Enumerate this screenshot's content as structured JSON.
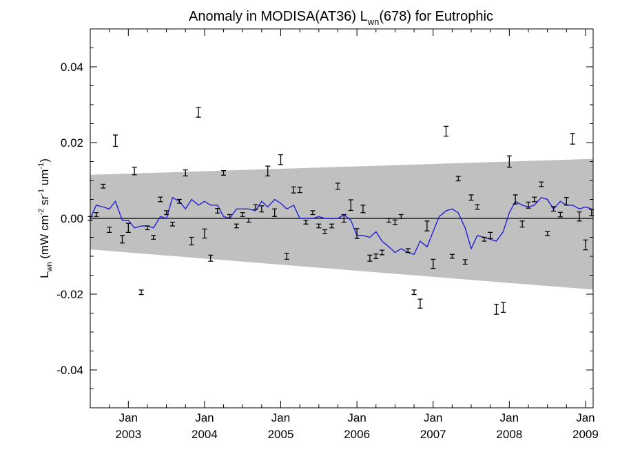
{
  "chart_data": {
    "type": "line",
    "title": {
      "prefix": "Anomaly in MODISA(AT36) L",
      "sub": "wn",
      "suffix": "(678) for Eutrophic"
    },
    "ylabel": {
      "p1": "L",
      "s1": "wn",
      "p2": " (mW cm",
      "s2": "-2",
      "p3": " sr",
      "s3": "-1",
      "p4": " um",
      "s4": "-1",
      "p5": ")"
    },
    "ylim": [
      -0.05,
      0.05
    ],
    "yticks": [
      -0.04,
      -0.02,
      0.0,
      0.02,
      0.04
    ],
    "ytick_labels": [
      "-0.04",
      "-0.02",
      "0.00",
      "0.02",
      "0.04"
    ],
    "xlim": [
      2002.5,
      2009.1
    ],
    "xticks": [
      {
        "x": 2003.0,
        "month": "Jan",
        "year": "2003"
      },
      {
        "x": 2004.0,
        "month": "Jan",
        "year": "2004"
      },
      {
        "x": 2005.0,
        "month": "Jan",
        "year": "2005"
      },
      {
        "x": 2006.0,
        "month": "Jan",
        "year": "2006"
      },
      {
        "x": 2007.0,
        "month": "Jan",
        "year": "2007"
      },
      {
        "x": 2008.0,
        "month": "Jan",
        "year": "2008"
      },
      {
        "x": 2009.0,
        "month": "Jan",
        "year": "2009"
      }
    ],
    "band": {
      "x": [
        2002.5,
        2009.1
      ],
      "upper": [
        0.0115,
        0.0157
      ],
      "lower": [
        -0.0082,
        -0.0188
      ],
      "color": "#c0c0c0"
    },
    "zero_line": 0.0,
    "series": [
      {
        "type": "errorbar",
        "color": "#000000",
        "points": [
          {
            "x": 2002.5,
            "y": 0.0,
            "err": 0.0005
          },
          {
            "x": 2002.58,
            "y": 0.001,
            "err": 0.0005
          },
          {
            "x": 2002.67,
            "y": 0.0085,
            "err": 0.0005
          },
          {
            "x": 2002.75,
            "y": -0.003,
            "err": 0.0007
          },
          {
            "x": 2002.83,
            "y": 0.0205,
            "err": 0.0015
          },
          {
            "x": 2002.92,
            "y": -0.0055,
            "err": 0.001
          },
          {
            "x": 2003.0,
            "y": -0.0025,
            "err": 0.0012
          },
          {
            "x": 2003.08,
            "y": 0.0125,
            "err": 0.001
          },
          {
            "x": 2003.17,
            "y": -0.0195,
            "err": 0.0006
          },
          {
            "x": 2003.25,
            "y": -0.0025,
            "err": 0.0005
          },
          {
            "x": 2003.33,
            "y": -0.005,
            "err": 0.0005
          },
          {
            "x": 2003.42,
            "y": 0.005,
            "err": 0.0006
          },
          {
            "x": 2003.5,
            "y": 0.0015,
            "err": 0.0005
          },
          {
            "x": 2003.58,
            "y": -0.0015,
            "err": 0.0005
          },
          {
            "x": 2003.67,
            "y": 0.0045,
            "err": 0.0005
          },
          {
            "x": 2003.75,
            "y": 0.012,
            "err": 0.0008
          },
          {
            "x": 2003.83,
            "y": -0.006,
            "err": 0.001
          },
          {
            "x": 2003.92,
            "y": 0.028,
            "err": 0.0013
          },
          {
            "x": 2004.0,
            "y": -0.004,
            "err": 0.0012
          },
          {
            "x": 2004.08,
            "y": -0.0105,
            "err": 0.0008
          },
          {
            "x": 2004.17,
            "y": 0.002,
            "err": 0.0006
          },
          {
            "x": 2004.25,
            "y": 0.012,
            "err": 0.0006
          },
          {
            "x": 2004.33,
            "y": 0.0005,
            "err": 0.0005
          },
          {
            "x": 2004.42,
            "y": -0.002,
            "err": 0.0005
          },
          {
            "x": 2004.5,
            "y": 0.001,
            "err": 0.0005
          },
          {
            "x": 2004.58,
            "y": -0.0005,
            "err": 0.0005
          },
          {
            "x": 2004.67,
            "y": 0.003,
            "err": 0.0006
          },
          {
            "x": 2004.75,
            "y": 0.0025,
            "err": 0.0008
          },
          {
            "x": 2004.83,
            "y": 0.0125,
            "err": 0.0013
          },
          {
            "x": 2004.92,
            "y": 0.0015,
            "err": 0.001
          },
          {
            "x": 2005.0,
            "y": 0.0155,
            "err": 0.0013
          },
          {
            "x": 2005.08,
            "y": -0.01,
            "err": 0.0008
          },
          {
            "x": 2005.17,
            "y": 0.0075,
            "err": 0.0008
          },
          {
            "x": 2005.25,
            "y": 0.0075,
            "err": 0.0007
          },
          {
            "x": 2005.33,
            "y": -0.001,
            "err": 0.0005
          },
          {
            "x": 2005.42,
            "y": 0.0015,
            "err": 0.0005
          },
          {
            "x": 2005.5,
            "y": -0.002,
            "err": 0.0005
          },
          {
            "x": 2005.58,
            "y": -0.0035,
            "err": 0.0005
          },
          {
            "x": 2005.67,
            "y": -0.002,
            "err": 0.0005
          },
          {
            "x": 2005.75,
            "y": 0.0085,
            "err": 0.0008
          },
          {
            "x": 2005.83,
            "y": 0.0,
            "err": 0.001
          },
          {
            "x": 2005.92,
            "y": 0.0035,
            "err": 0.0014
          },
          {
            "x": 2006.0,
            "y": -0.004,
            "err": 0.0013
          },
          {
            "x": 2006.08,
            "y": 0.0025,
            "err": 0.001
          },
          {
            "x": 2006.17,
            "y": -0.0105,
            "err": 0.0008
          },
          {
            "x": 2006.25,
            "y": -0.01,
            "err": 0.0006
          },
          {
            "x": 2006.33,
            "y": -0.009,
            "err": 0.0006
          },
          {
            "x": 2006.42,
            "y": -0.0005,
            "err": 0.0005
          },
          {
            "x": 2006.5,
            "y": -0.001,
            "err": 0.0006
          },
          {
            "x": 2006.58,
            "y": 0.0005,
            "err": 0.0005
          },
          {
            "x": 2006.67,
            "y": -0.0085,
            "err": 0.0005
          },
          {
            "x": 2006.75,
            "y": -0.0195,
            "err": 0.0006
          },
          {
            "x": 2006.83,
            "y": -0.0225,
            "err": 0.0012
          },
          {
            "x": 2006.92,
            "y": -0.002,
            "err": 0.0013
          },
          {
            "x": 2007.0,
            "y": -0.012,
            "err": 0.0012
          },
          {
            "x": 2007.17,
            "y": 0.023,
            "err": 0.0013
          },
          {
            "x": 2007.25,
            "y": -0.01,
            "err": 0.0005
          },
          {
            "x": 2007.33,
            "y": 0.0105,
            "err": 0.0006
          },
          {
            "x": 2007.42,
            "y": -0.0115,
            "err": 0.0006
          },
          {
            "x": 2007.5,
            "y": 0.0055,
            "err": 0.0007
          },
          {
            "x": 2007.58,
            "y": 0.003,
            "err": 0.0006
          },
          {
            "x": 2007.67,
            "y": -0.0055,
            "err": 0.0005
          },
          {
            "x": 2007.75,
            "y": -0.0045,
            "err": 0.0008
          },
          {
            "x": 2007.83,
            "y": -0.024,
            "err": 0.0013
          },
          {
            "x": 2007.92,
            "y": -0.0235,
            "err": 0.0013
          },
          {
            "x": 2008.0,
            "y": 0.015,
            "err": 0.0015
          },
          {
            "x": 2008.08,
            "y": 0.005,
            "err": 0.0012
          },
          {
            "x": 2008.17,
            "y": -0.0015,
            "err": 0.0008
          },
          {
            "x": 2008.25,
            "y": 0.0035,
            "err": 0.0008
          },
          {
            "x": 2008.33,
            "y": 0.005,
            "err": 0.0006
          },
          {
            "x": 2008.42,
            "y": 0.009,
            "err": 0.0006
          },
          {
            "x": 2008.5,
            "y": -0.004,
            "err": 0.0005
          },
          {
            "x": 2008.58,
            "y": 0.0025,
            "err": 0.0006
          },
          {
            "x": 2008.67,
            "y": 0.001,
            "err": 0.0006
          },
          {
            "x": 2008.75,
            "y": 0.0045,
            "err": 0.001
          },
          {
            "x": 2008.83,
            "y": 0.021,
            "err": 0.0014
          },
          {
            "x": 2008.92,
            "y": 0.0005,
            "err": 0.0012
          },
          {
            "x": 2009.0,
            "y": -0.007,
            "err": 0.0013
          },
          {
            "x": 2009.08,
            "y": 0.0015,
            "err": 0.0008
          }
        ]
      },
      {
        "type": "line",
        "color": "#1f1fd6",
        "x": [
          2002.5,
          2002.58,
          2002.67,
          2002.75,
          2002.83,
          2002.92,
          2003.0,
          2003.08,
          2003.17,
          2003.25,
          2003.33,
          2003.42,
          2003.5,
          2003.58,
          2003.67,
          2003.75,
          2003.83,
          2003.92,
          2004.0,
          2004.08,
          2004.17,
          2004.25,
          2004.33,
          2004.42,
          2004.5,
          2004.58,
          2004.67,
          2004.75,
          2004.83,
          2004.92,
          2005.0,
          2005.08,
          2005.17,
          2005.25,
          2005.33,
          2005.42,
          2005.5,
          2005.58,
          2005.67,
          2005.75,
          2005.83,
          2005.92,
          2006.0,
          2006.08,
          2006.17,
          2006.25,
          2006.33,
          2006.42,
          2006.5,
          2006.58,
          2006.67,
          2006.75,
          2006.83,
          2006.92,
          2007.0,
          2007.08,
          2007.17,
          2007.25,
          2007.33,
          2007.42,
          2007.5,
          2007.58,
          2007.67,
          2007.75,
          2007.83,
          2007.92,
          2008.0,
          2008.08,
          2008.17,
          2008.25,
          2008.33,
          2008.42,
          2008.5,
          2008.58,
          2008.67,
          2008.75,
          2008.83,
          2008.92,
          2009.0,
          2009.08
        ],
        "y": [
          0.0,
          0.0035,
          0.003,
          0.0025,
          0.0045,
          -0.0005,
          -0.0005,
          -0.0025,
          -0.002,
          -0.002,
          -0.0025,
          0.0005,
          0.0,
          0.0055,
          0.0045,
          0.0025,
          0.005,
          0.0035,
          0.0045,
          0.0035,
          0.0035,
          0.0005,
          0.0,
          0.0025,
          0.0025,
          0.0025,
          0.002,
          0.0045,
          0.003,
          0.005,
          0.004,
          0.0025,
          0.0035,
          0.0,
          0.0,
          0.0,
          0.0005,
          0.0,
          0.0,
          0.0,
          0.001,
          -0.0005,
          -0.0045,
          -0.0045,
          -0.005,
          -0.0035,
          -0.006,
          -0.0075,
          -0.009,
          -0.008,
          -0.009,
          -0.0095,
          -0.006,
          -0.0075,
          -0.0035,
          0.0005,
          0.002,
          0.0025,
          0.0015,
          -0.0025,
          -0.008,
          -0.0045,
          -0.005,
          -0.0055,
          -0.006,
          -0.0035,
          0.0015,
          0.0045,
          0.0035,
          0.003,
          0.0035,
          0.0055,
          0.005,
          0.0025,
          0.0045,
          0.0035,
          0.0035,
          0.0025,
          0.003,
          0.0025
        ]
      }
    ]
  }
}
